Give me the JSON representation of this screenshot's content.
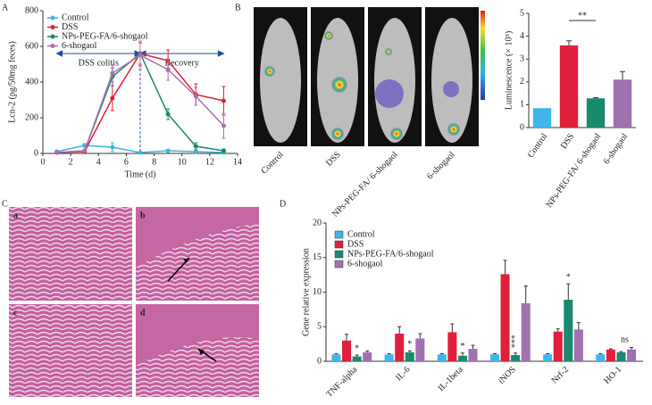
{
  "panel_labels": [
    "A",
    "B",
    "C",
    "D"
  ],
  "mouse_labels": [
    "Control",
    "DSS",
    "NPs-PEG-FA/ 6-shogaol",
    "6-shogaol"
  ],
  "histology_labels": [
    "a",
    "b",
    "c",
    "d"
  ],
  "chart_data": [
    {
      "type": "line",
      "xlabel": "Time (d)",
      "ylabel": "Lcn-2 (pg/50mg feces)",
      "x": [
        1,
        3,
        5,
        7,
        9,
        11,
        13
      ],
      "xlim": [
        0,
        14
      ],
      "xticks": [
        0,
        2,
        4,
        6,
        8,
        10,
        12,
        14
      ],
      "ylim": [
        0,
        800
      ],
      "yticks": [
        0,
        200,
        400,
        600,
        800
      ],
      "divider_x": 7,
      "annotations": [
        "DSS colitis",
        "Recovery"
      ],
      "series": [
        {
          "name": "Control",
          "color": "#3cb4e6",
          "values": [
            10,
            45,
            35,
            5,
            15,
            10,
            5
          ],
          "errors": [
            5,
            10,
            25,
            5,
            5,
            3,
            3
          ]
        },
        {
          "name": "DSS",
          "color": "#e0202f",
          "values": [
            5,
            10,
            310,
            560,
            520,
            330,
            295
          ],
          "errors": [
            5,
            5,
            70,
            60,
            60,
            60,
            80
          ]
        },
        {
          "name": "NPs-PEG-FA/6-shogaol",
          "color": "#1a8a6e",
          "values": [
            5,
            15,
            430,
            560,
            220,
            40,
            15
          ],
          "errors": [
            5,
            5,
            50,
            70,
            30,
            20,
            10
          ]
        },
        {
          "name": "6-shogaol",
          "color": "#b06ab0",
          "values": [
            5,
            15,
            450,
            550,
            470,
            320,
            155
          ],
          "errors": [
            5,
            5,
            50,
            80,
            60,
            50,
            70
          ]
        }
      ]
    },
    {
      "type": "bar",
      "ylabel": "Luminescence (× 10⁵)",
      "categories": [
        "Control",
        "DSS",
        "NPs-PEG-FA/ 6-shogaol",
        "6-shogaol"
      ],
      "values": [
        0.85,
        3.6,
        1.28,
        2.1
      ],
      "errors": [
        0,
        0.2,
        0.03,
        0.35
      ],
      "colors": [
        "#3fb6e8",
        "#e0203a",
        "#1a8a6e",
        "#a070b0"
      ],
      "ylim": [
        0,
        5
      ],
      "yticks": [
        0,
        1,
        2,
        3,
        4,
        5
      ],
      "significance": "**"
    },
    {
      "type": "grouped-bar",
      "ylabel": "Gene relative expression",
      "categories": [
        "TNF-alpha",
        "IL-6",
        "IL-1beta",
        "iNOS",
        "Nrf-2",
        "HO-1"
      ],
      "ylim": [
        0,
        20
      ],
      "yticks": [
        0,
        5,
        10,
        15,
        20
      ],
      "sig_labels": [
        "*",
        "*",
        "*",
        "***",
        "*",
        "ns"
      ],
      "series": [
        {
          "name": "Control",
          "color": "#3fb6e8",
          "values": [
            1,
            1,
            1,
            1,
            1,
            1
          ],
          "errors": [
            0.1,
            0.1,
            0.1,
            0.1,
            0.1,
            0.1
          ]
        },
        {
          "name": "DSS",
          "color": "#e0203a",
          "values": [
            3.0,
            4.0,
            4.2,
            12.6,
            4.3,
            1.7
          ],
          "errors": [
            0.9,
            1.0,
            1.2,
            2.0,
            0.4,
            0.1
          ]
        },
        {
          "name": "NPs-PEG-FA/6-shogaol",
          "color": "#1a8a6e",
          "values": [
            0.7,
            1.3,
            0.8,
            0.9,
            8.9,
            1.3
          ],
          "errors": [
            0.2,
            0.2,
            0.4,
            0.3,
            2.3,
            0.1
          ]
        },
        {
          "name": "6-shogaol",
          "color": "#a070b0",
          "values": [
            1.3,
            3.3,
            1.8,
            8.4,
            4.6,
            1.7
          ],
          "errors": [
            0.2,
            0.7,
            0.5,
            2.5,
            1.0,
            0.3
          ]
        }
      ]
    }
  ]
}
